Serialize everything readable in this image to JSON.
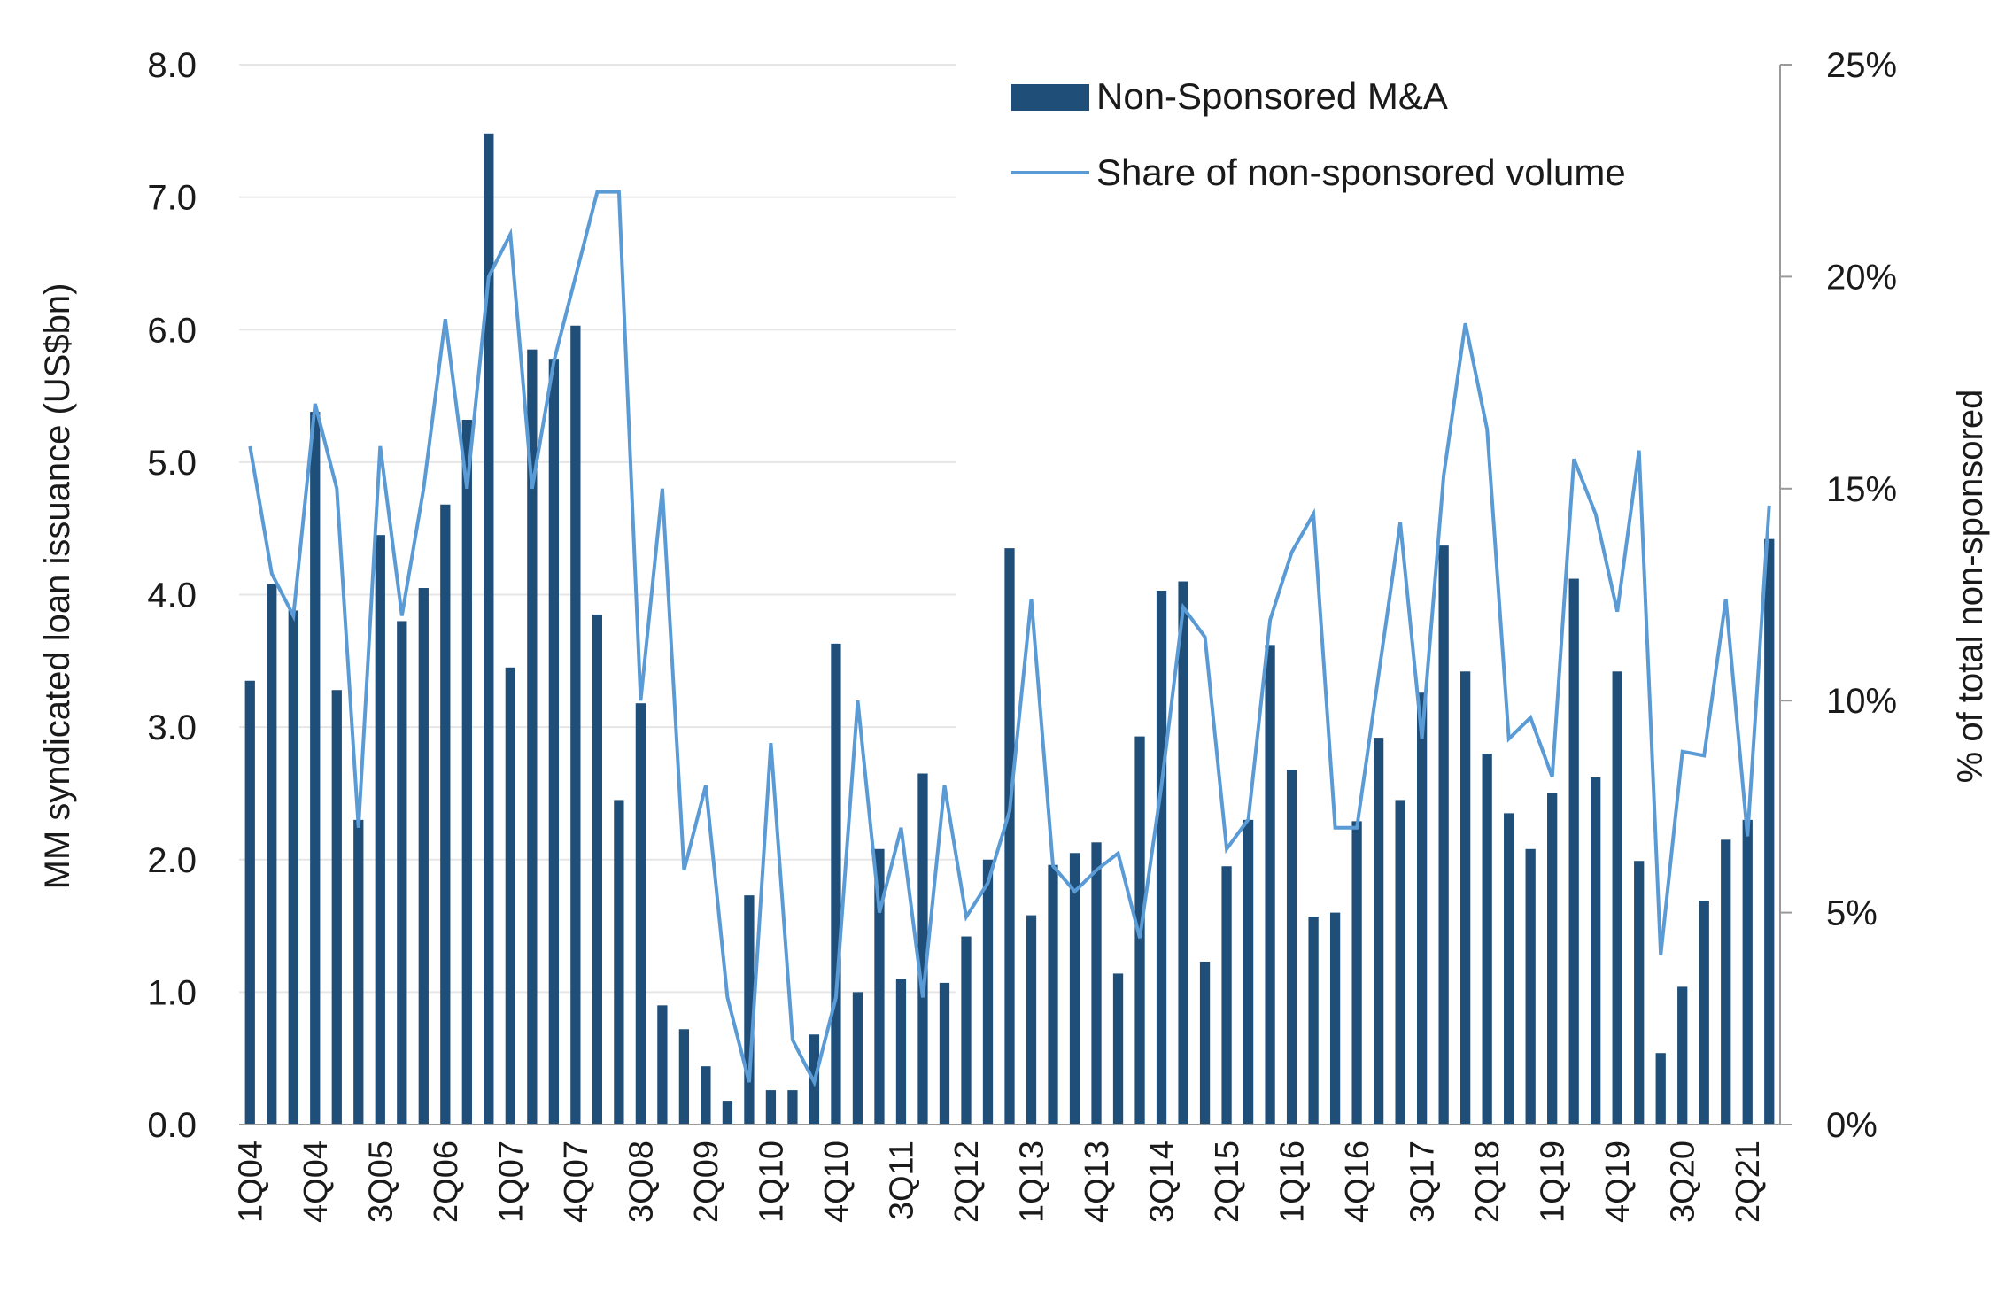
{
  "chart_data": {
    "type": "bar",
    "xlabel": "",
    "ylabel": "MM syndicated loan issuance (US$bn)",
    "y2label": "% of total non-sponsored",
    "ylim": [
      0,
      8
    ],
    "y2lim": [
      0,
      25
    ],
    "yticks": [
      "0.0",
      "1.0",
      "2.0",
      "3.0",
      "4.0",
      "5.0",
      "6.0",
      "7.0",
      "8.0"
    ],
    "y2ticks": [
      "0%",
      "5%",
      "10%",
      "15%",
      "20%",
      "25%"
    ],
    "grid": true,
    "legend_position": "top-right",
    "categories": [
      "1Q04",
      "2Q04",
      "3Q04",
      "4Q04",
      "1Q05",
      "2Q05",
      "3Q05",
      "4Q05",
      "1Q06",
      "2Q06",
      "3Q06",
      "4Q06",
      "1Q07",
      "2Q07",
      "3Q07",
      "4Q07",
      "1Q08",
      "2Q08",
      "3Q08",
      "4Q08",
      "1Q09",
      "2Q09",
      "3Q09",
      "4Q09",
      "1Q10",
      "2Q10",
      "3Q10",
      "4Q10",
      "1Q11",
      "2Q11",
      "3Q11",
      "4Q11",
      "1Q12",
      "2Q12",
      "3Q12",
      "4Q12",
      "1Q13",
      "2Q13",
      "3Q13",
      "4Q13",
      "1Q14",
      "2Q14",
      "3Q14",
      "4Q14",
      "1Q15",
      "2Q15",
      "3Q15",
      "4Q15",
      "1Q16",
      "2Q16",
      "3Q16",
      "4Q16",
      "1Q17",
      "2Q17",
      "3Q17",
      "4Q17",
      "1Q18",
      "2Q18",
      "3Q18",
      "4Q18",
      "1Q19",
      "2Q19",
      "3Q19",
      "4Q19",
      "1Q20",
      "2Q20",
      "3Q20",
      "4Q20",
      "1Q21",
      "2Q21",
      "3Q21"
    ],
    "tick_labels": [
      "1Q04",
      "4Q04",
      "3Q05",
      "2Q06",
      "1Q07",
      "4Q07",
      "3Q08",
      "2Q09",
      "1Q10",
      "4Q10",
      "3Q11",
      "2Q12",
      "1Q13",
      "4Q13",
      "3Q14",
      "2Q15",
      "1Q16",
      "4Q16",
      "3Q17",
      "2Q18",
      "1Q19",
      "4Q19",
      "3Q20",
      "2Q21"
    ],
    "series": [
      {
        "name": "Non-Sponsored M&A",
        "type": "bar",
        "axis": "left",
        "color": "#1f4e79",
        "values": [
          3.35,
          4.08,
          3.88,
          5.38,
          3.28,
          2.3,
          4.45,
          3.8,
          4.05,
          4.68,
          5.32,
          7.48,
          3.45,
          5.85,
          5.78,
          6.03,
          3.85,
          2.45,
          3.18,
          0.9,
          0.72,
          0.44,
          0.18,
          1.73,
          0.26,
          0.26,
          0.68,
          3.63,
          1.0,
          2.08,
          1.1,
          2.65,
          1.07,
          1.42,
          2.0,
          4.35,
          1.58,
          1.96,
          2.05,
          2.13,
          1.14,
          2.93,
          4.03,
          4.1,
          1.23,
          1.95,
          2.3,
          3.62,
          2.68,
          1.57,
          1.6,
          2.29,
          2.92,
          2.45,
          3.26,
          4.37,
          3.42,
          2.8,
          2.35,
          2.08,
          2.5,
          4.12,
          2.62,
          3.42,
          1.99,
          0.54,
          1.04,
          1.69,
          2.15,
          2.3,
          4.42
        ]
      },
      {
        "name": "Share of non-sponsored volume",
        "type": "line",
        "axis": "right",
        "color": "#5b9bd5",
        "values": [
          16,
          13,
          12,
          17,
          15,
          7,
          16,
          12,
          15,
          19,
          15,
          20,
          21,
          15,
          18,
          20,
          22,
          22,
          10,
          15,
          6,
          8,
          3,
          1,
          9,
          2,
          1,
          3,
          10,
          5,
          7,
          3,
          8,
          4.9,
          5.7,
          7.4,
          12.4,
          6.1,
          5.5,
          6.0,
          6.4,
          4.4,
          8.0,
          12.2,
          11.5,
          6.5,
          7.2,
          11.9,
          13.5,
          14.4,
          7.0,
          7.0,
          10.6,
          14.2,
          9.1,
          15.3,
          18.9,
          16.4,
          9.1,
          9.6,
          8.2,
          15.7,
          14.4,
          12.1,
          15.9,
          4.0,
          8.8,
          8.7,
          12.4,
          6.8,
          14.6
        ]
      }
    ]
  }
}
